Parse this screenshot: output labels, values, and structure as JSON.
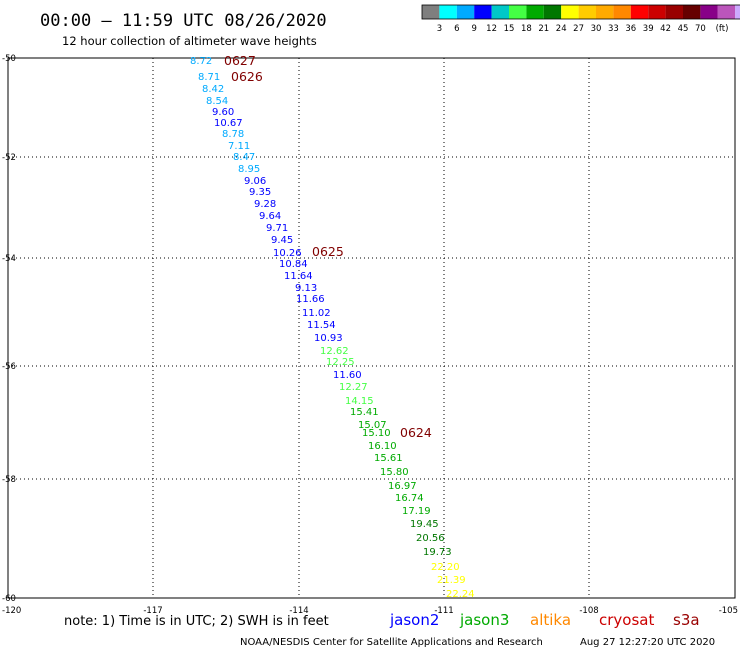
{
  "title": "00:00 – 11:59 UTC 08/26/2020",
  "subtitle": "12 hour collection of altimeter wave heights",
  "colorbar": {
    "colors": [
      "#7f7f7f",
      "#00ffff",
      "#00aaff",
      "#0000ff",
      "#00c8c8",
      "#44ff44",
      "#00aa00",
      "#007700",
      "#ffff00",
      "#ffcc00",
      "#ffaa00",
      "#ff8800",
      "#ff0000",
      "#cc0000",
      "#990000",
      "#660000",
      "#880088",
      "#bb55bb",
      "#ccaaff",
      "#ff99ff",
      "#000000"
    ],
    "labels": [
      "3",
      "6",
      "9",
      "12",
      "15",
      "18",
      "21",
      "24",
      "27",
      "30",
      "33",
      "36",
      "39",
      "42",
      "45",
      "70"
    ],
    "unit": "(ft)"
  },
  "axes": {
    "lat_ticks": [
      "-50",
      "-52",
      "-54",
      "-56",
      "-58",
      "-60"
    ],
    "lon_ticks": [
      "-120",
      "-117",
      "-114",
      "-111",
      "-108",
      "-105"
    ]
  },
  "pass_labels": [
    "0627",
    "0626",
    "0625",
    "0624"
  ],
  "observations": [
    {
      "v": "8.72",
      "c": "#00aaff"
    },
    {
      "v": "8.71",
      "c": "#00aaff"
    },
    {
      "v": "8.42",
      "c": "#00aaff"
    },
    {
      "v": "8.54",
      "c": "#00aaff"
    },
    {
      "v": "9.60",
      "c": "#0000ff"
    },
    {
      "v": "10.67",
      "c": "#0000ff"
    },
    {
      "v": "8.78",
      "c": "#00aaff"
    },
    {
      "v": "7.11",
      "c": "#00aaff"
    },
    {
      "v": "8.47",
      "c": "#00aaff"
    },
    {
      "v": "8.95",
      "c": "#00aaff"
    },
    {
      "v": "9.06",
      "c": "#0000ff"
    },
    {
      "v": "9.35",
      "c": "#0000ff"
    },
    {
      "v": "9.28",
      "c": "#0000ff"
    },
    {
      "v": "9.64",
      "c": "#0000ff"
    },
    {
      "v": "9.71",
      "c": "#0000ff"
    },
    {
      "v": "9.45",
      "c": "#0000ff"
    },
    {
      "v": "10.26",
      "c": "#0000ff"
    },
    {
      "v": "10.84",
      "c": "#0000ff"
    },
    {
      "v": "11.64",
      "c": "#0000ff"
    },
    {
      "v": "9.13",
      "c": "#0000ff"
    },
    {
      "v": "11.66",
      "c": "#0000ff"
    },
    {
      "v": "11.02",
      "c": "#0000ff"
    },
    {
      "v": "11.54",
      "c": "#0000ff"
    },
    {
      "v": "10.93",
      "c": "#0000ff"
    },
    {
      "v": "12.62",
      "c": "#44ff44"
    },
    {
      "v": "12.25",
      "c": "#44ff44"
    },
    {
      "v": "11.60",
      "c": "#0000ff"
    },
    {
      "v": "12.27",
      "c": "#44ff44"
    },
    {
      "v": "14.15",
      "c": "#44ff44"
    },
    {
      "v": "15.41",
      "c": "#00aa00"
    },
    {
      "v": "15.07",
      "c": "#00aa00"
    },
    {
      "v": "15.10",
      "c": "#00aa00"
    },
    {
      "v": "16.10",
      "c": "#00aa00"
    },
    {
      "v": "15.61",
      "c": "#00aa00"
    },
    {
      "v": "15.80",
      "c": "#00aa00"
    },
    {
      "v": "16.97",
      "c": "#00aa00"
    },
    {
      "v": "16.74",
      "c": "#00aa00"
    },
    {
      "v": "17.19",
      "c": "#00aa00"
    },
    {
      "v": "19.45",
      "c": "#007700"
    },
    {
      "v": "20.56",
      "c": "#007700"
    },
    {
      "v": "19.73",
      "c": "#007700"
    },
    {
      "v": "22.20",
      "c": "#ffff00"
    },
    {
      "v": "21.39",
      "c": "#ffff00"
    },
    {
      "v": "22.24",
      "c": "#ffff00"
    }
  ],
  "note": "note:  1) Time is in UTC;  2) SWH is in feet",
  "missions": [
    {
      "name": "jason2",
      "color": "#0000ff"
    },
    {
      "name": "jason3",
      "color": "#00aa00"
    },
    {
      "name": "altika",
      "color": "#ff8800"
    },
    {
      "name": "cryosat",
      "color": "#cc0000"
    },
    {
      "name": "s3a",
      "color": "#990000"
    }
  ],
  "footer": "NOAA/NESDIS Center for Satellite Applications and Research",
  "timestamp": "Aug 27 12:27:20 UTC 2020"
}
